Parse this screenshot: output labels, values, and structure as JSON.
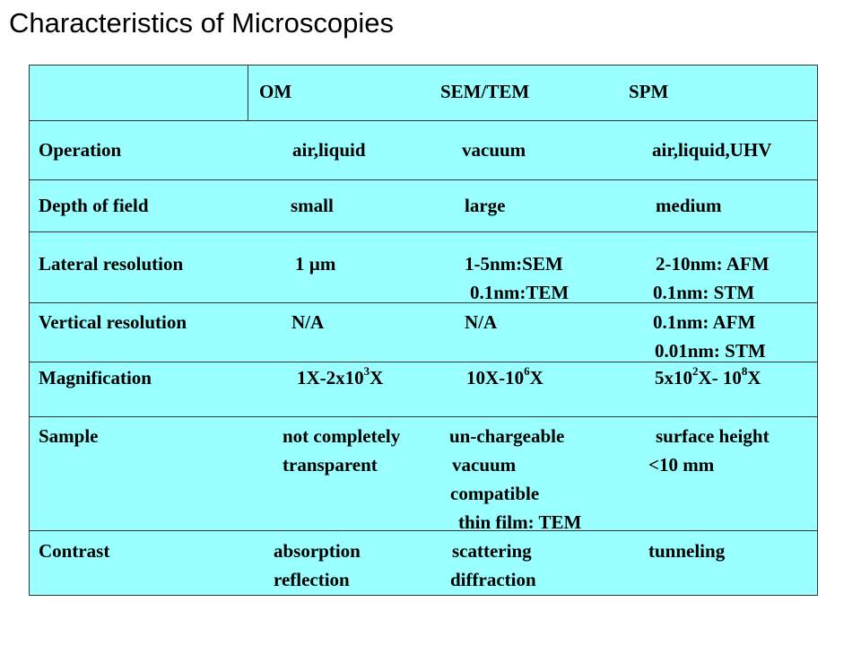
{
  "title": "Characteristics of Microscopies",
  "header": {
    "om": "OM",
    "semtem": "SEM/TEM",
    "spm": "SPM"
  },
  "rows": [
    {
      "label": "Operation",
      "om": [
        "air,liquid"
      ],
      "sem": [
        "vacuum"
      ],
      "spm": [
        "air,liquid,UHV"
      ]
    },
    {
      "label": "Depth of field",
      "om": [
        "small"
      ],
      "sem": [
        "large"
      ],
      "spm": [
        "medium"
      ]
    },
    {
      "label": "Lateral resolution",
      "om": [
        "1 µm"
      ],
      "sem": [
        "1-5nm:SEM",
        "0.1nm:TEM"
      ],
      "spm": [
        "2-10nm: AFM",
        "0.1nm: STM"
      ]
    },
    {
      "label": "Vertical resolution",
      "om": [
        "N/A"
      ],
      "sem": [
        "N/A"
      ],
      "spm": [
        "0.1nm: AFM",
        "0.01nm: STM"
      ]
    },
    {
      "label": "Magnification",
      "om": {
        "base": "1X-2x10",
        "sup": "3",
        "end": "X"
      },
      "sem": {
        "base": "10X-10",
        "sup": "6",
        "end": "X"
      },
      "spm": {
        "base1": "5x10",
        "sup1": "2",
        "mid": "X- 10",
        "sup2": "8",
        "end": "X"
      }
    },
    {
      "label": "Sample",
      "om": [
        "not completely",
        "transparent"
      ],
      "sem": [
        "un-chargeable",
        "vacuum",
        "compatible",
        "thin film: TEM"
      ],
      "spm": [
        "surface height",
        "<10 mm"
      ]
    },
    {
      "label": "Contrast",
      "om": [
        "absorption",
        "reflection"
      ],
      "sem": [
        "scattering",
        "diffraction"
      ],
      "spm": [
        "tunneling"
      ]
    }
  ]
}
